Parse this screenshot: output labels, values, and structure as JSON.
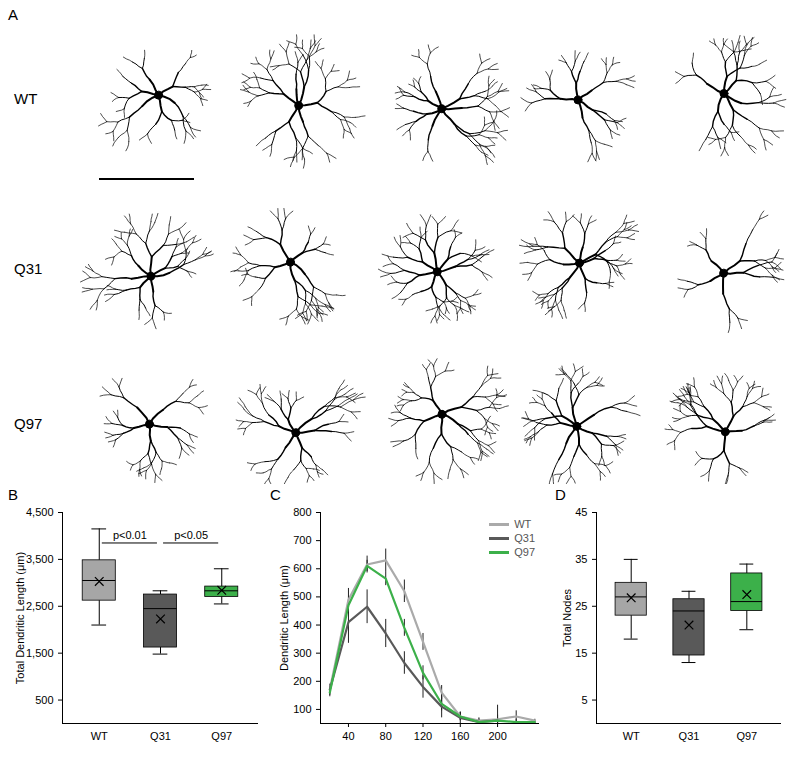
{
  "panel_a": {
    "letter": "A",
    "rows": [
      "WT",
      "Q31",
      "Q97"
    ]
  },
  "chart_data": [
    {
      "letter": "B",
      "type": "box",
      "ylabel": "Total Dendritic Length (μm)",
      "categories": [
        "WT",
        "Q31",
        "Q97"
      ],
      "marker": "x",
      "series": [
        {
          "name": "WT",
          "color": "#a6a6a6",
          "min": 2100,
          "q1": 2620,
          "median": 3050,
          "q3": 3480,
          "max": 4150,
          "mean": 3030
        },
        {
          "name": "Q31",
          "color": "#595959",
          "min": 1480,
          "q1": 1620,
          "median": 2450,
          "q3": 2750,
          "max": 2830,
          "mean": 2230
        },
        {
          "name": "Q97",
          "color": "#3cb04a",
          "min": 2550,
          "q1": 2700,
          "median": 2830,
          "q3": 2920,
          "max": 3300,
          "mean": 2840
        }
      ],
      "ylim": [
        0,
        4500
      ],
      "yticks": [
        500,
        1500,
        2500,
        3500,
        4500
      ],
      "annotations": [
        {
          "from": "WT",
          "to": "Q31",
          "y": 3850,
          "text": "p<0.01"
        },
        {
          "from": "Q31",
          "to": "Q97",
          "y": 3850,
          "text": "p<0.05"
        }
      ]
    },
    {
      "letter": "C",
      "type": "line",
      "ylabel": "Dendritic Length (μm)",
      "x": [
        20,
        40,
        60,
        80,
        100,
        120,
        140,
        160,
        180,
        200,
        220,
        240
      ],
      "series": [
        {
          "name": "WT",
          "color": "#aaaaaa",
          "values": [
            170,
            490,
            615,
            630,
            520,
            340,
            160,
            75,
            60,
            65,
            75,
            60
          ],
          "errors": [
            10,
            40,
            30,
            40,
            40,
            30,
            25,
            15,
            10,
            50,
            20,
            5
          ]
        },
        {
          "name": "Q31",
          "color": "#595959",
          "values": [
            170,
            410,
            465,
            370,
            265,
            180,
            110,
            70,
            55,
            60,
            null,
            null
          ],
          "errors": [
            20,
            75,
            60,
            50,
            40,
            40,
            40,
            20,
            10,
            10,
            null,
            null
          ]
        },
        {
          "name": "Q97",
          "color": "#3cb04a",
          "values": [
            160,
            470,
            610,
            565,
            390,
            230,
            120,
            75,
            55,
            60,
            55,
            55
          ],
          "errors": [
            15,
            30,
            20,
            25,
            30,
            25,
            25,
            15,
            10,
            20,
            10,
            5
          ]
        }
      ],
      "xlim": [
        10,
        245
      ],
      "xticks": [
        40,
        80,
        120,
        160,
        200
      ],
      "ylim": [
        50,
        800
      ],
      "yticks": [
        100,
        200,
        300,
        400,
        500,
        600,
        700,
        800
      ],
      "legend": "top-right"
    },
    {
      "letter": "D",
      "type": "box",
      "ylabel": "Total Nodes",
      "categories": [
        "WT",
        "Q31",
        "Q97"
      ],
      "marker": "x",
      "series": [
        {
          "name": "WT",
          "color": "#a6a6a6",
          "min": 18,
          "q1": 23,
          "median": 27,
          "q3": 30,
          "max": 35,
          "mean": 26.8
        },
        {
          "name": "Q31",
          "color": "#595959",
          "min": 13,
          "q1": 14.5,
          "median": 24,
          "q3": 26.5,
          "max": 28.2,
          "mean": 21
        },
        {
          "name": "Q97",
          "color": "#3cb04a",
          "min": 20,
          "q1": 24,
          "median": 26,
          "q3": 32,
          "max": 34,
          "mean": 27.5
        }
      ],
      "ylim": [
        0,
        45
      ],
      "yticks": [
        5,
        15,
        25,
        35,
        45
      ]
    }
  ]
}
